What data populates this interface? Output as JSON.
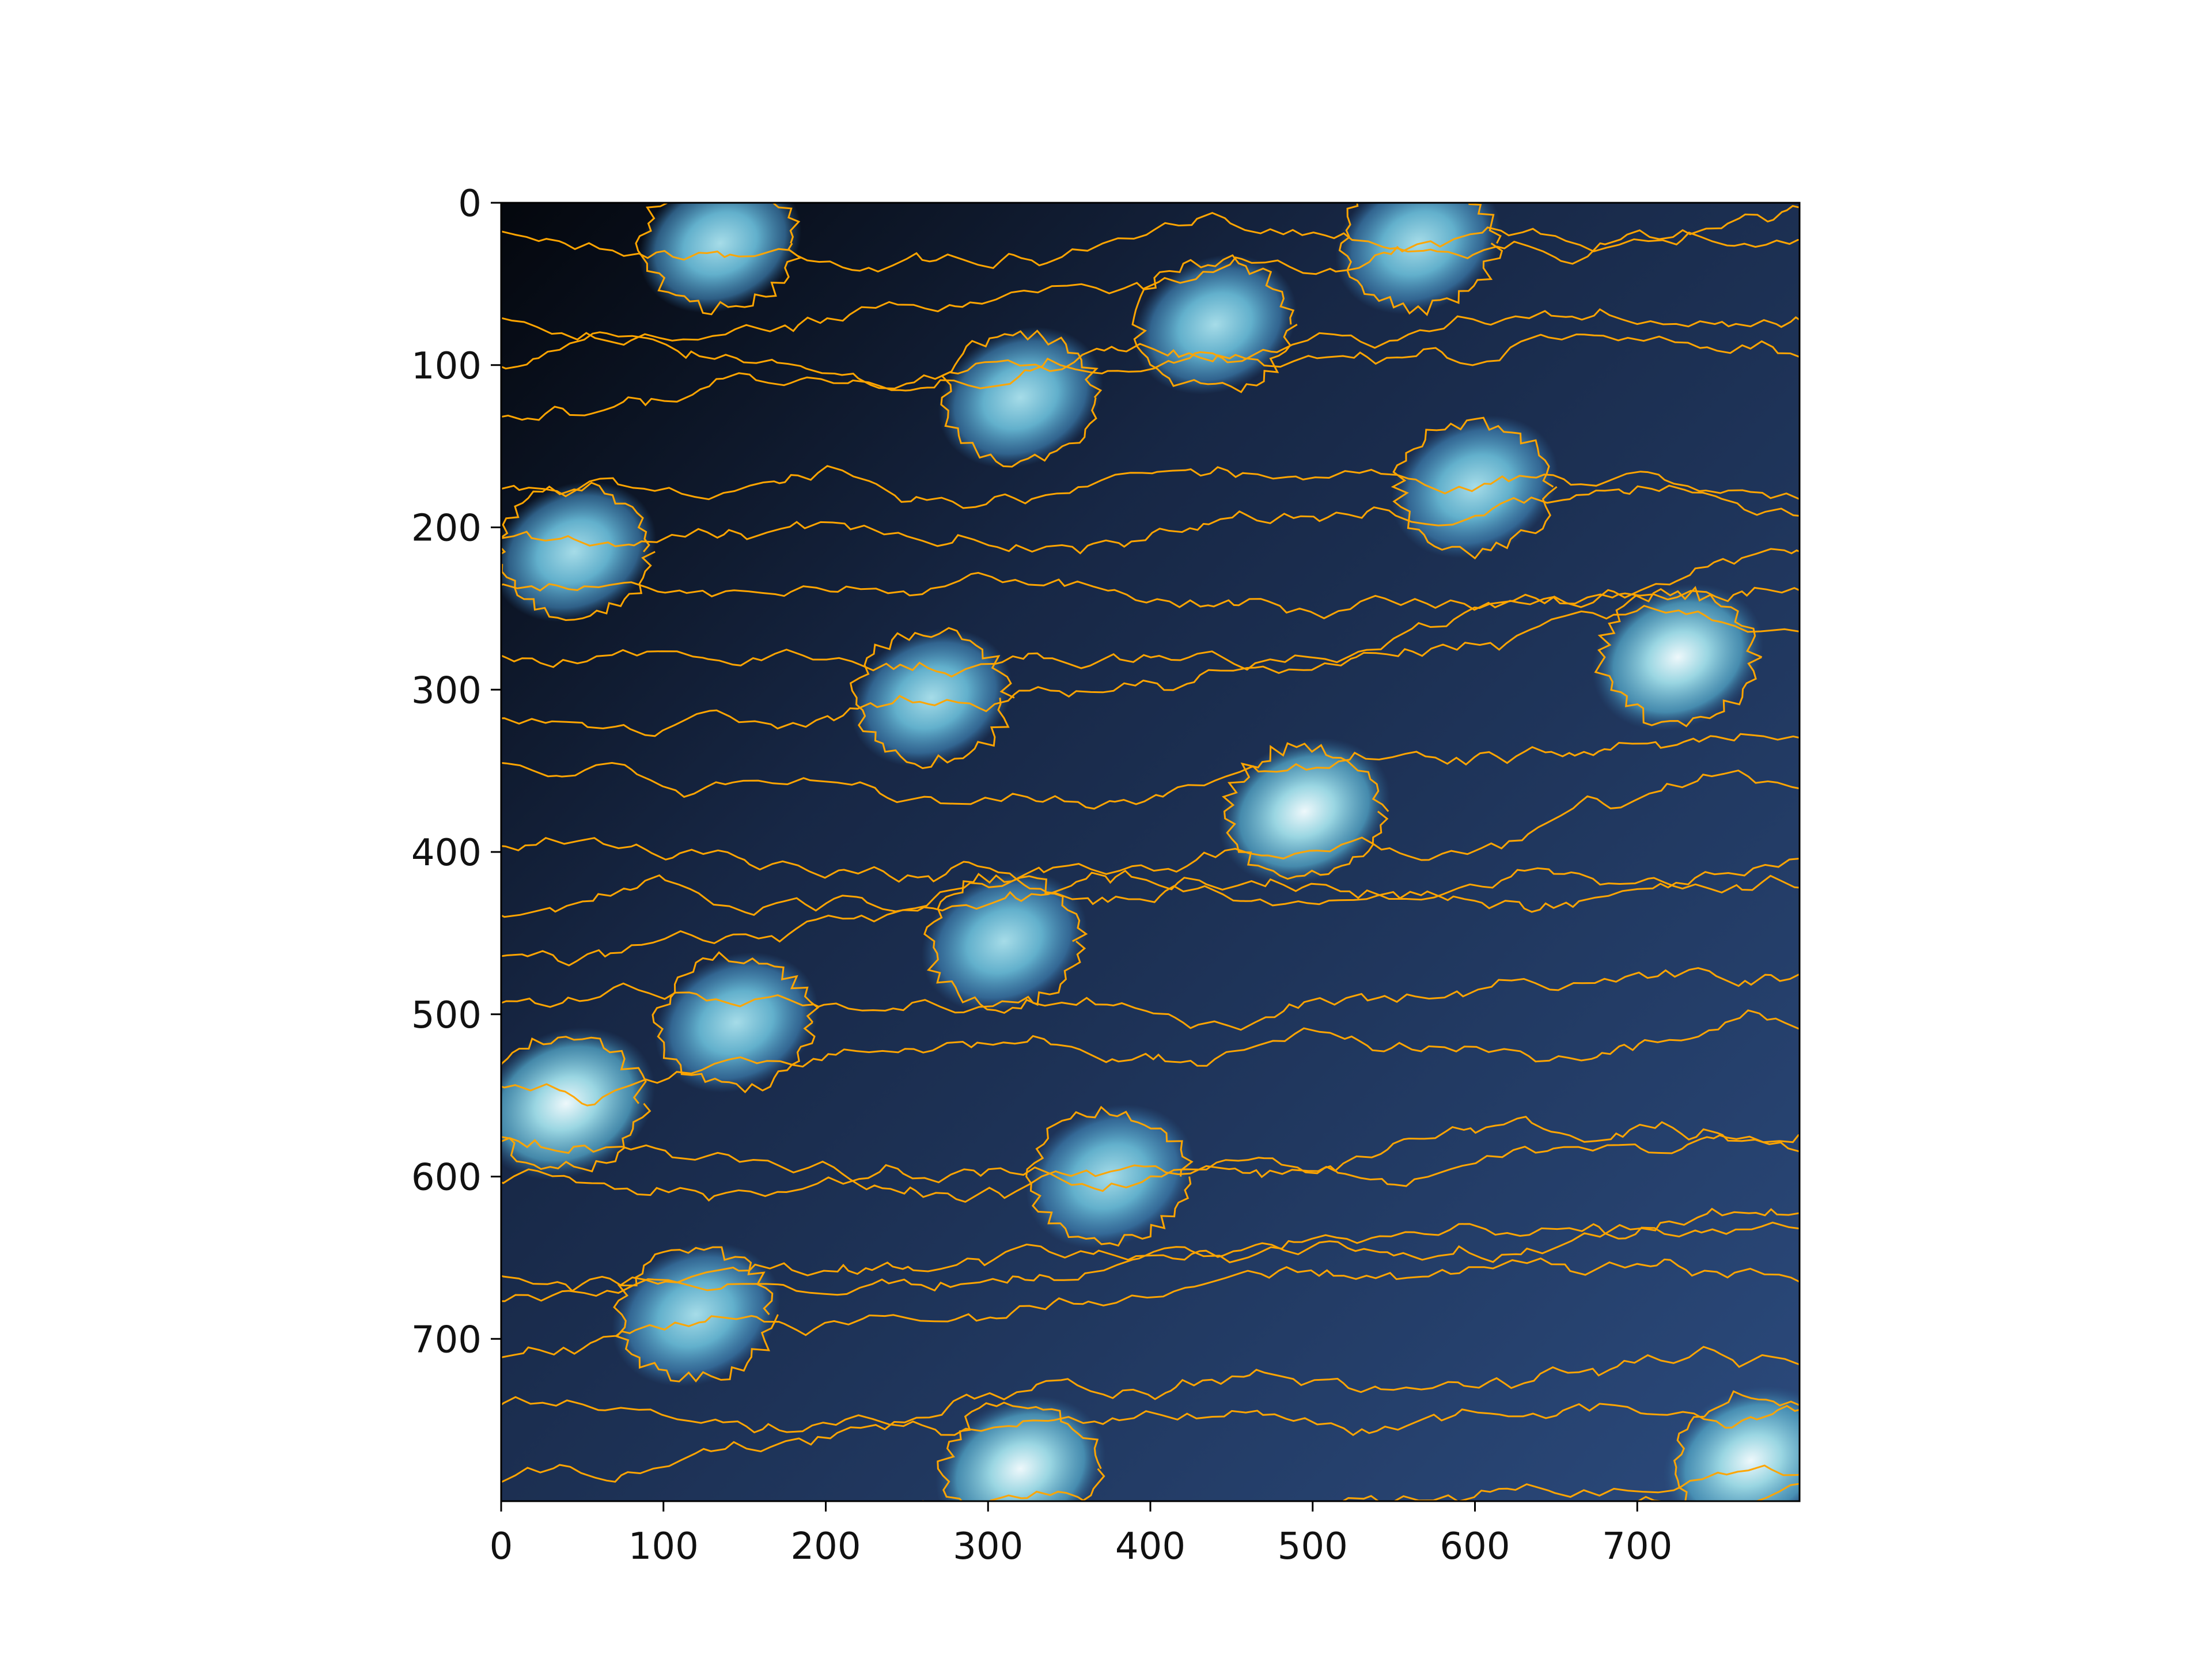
{
  "chart_data": {
    "type": "heatmap",
    "title": "",
    "xlabel": "",
    "ylabel": "",
    "xlim": [
      0,
      800
    ],
    "ylim": [
      800,
      0
    ],
    "y_axis_inverted": true,
    "xticks": [
      0,
      100,
      200,
      300,
      400,
      500,
      600,
      700
    ],
    "yticks": [
      0,
      100,
      200,
      300,
      400,
      500,
      600,
      700
    ],
    "xtick_labels": [
      "0",
      "100",
      "200",
      "300",
      "400",
      "500",
      "600",
      "700"
    ],
    "ytick_labels": [
      "0",
      "100",
      "200",
      "300",
      "400",
      "500",
      "600",
      "700"
    ],
    "colormap": "dark navy to cyan to white",
    "background_color": "#22395f",
    "contour_color": "#ffa500",
    "grid": false,
    "legend": "none",
    "blobs": [
      {
        "x": 135,
        "y": 25,
        "value": 0.65
      },
      {
        "x": 565,
        "y": 25,
        "value": 0.72
      },
      {
        "x": 440,
        "y": 75,
        "value": 0.66
      },
      {
        "x": 320,
        "y": 120,
        "value": 0.7
      },
      {
        "x": 600,
        "y": 175,
        "value": 0.74
      },
      {
        "x": 45,
        "y": 215,
        "value": 0.68
      },
      {
        "x": 725,
        "y": 280,
        "value": 0.85
      },
      {
        "x": 265,
        "y": 305,
        "value": 0.62
      },
      {
        "x": 495,
        "y": 375,
        "value": 0.86
      },
      {
        "x": 310,
        "y": 455,
        "value": 0.72
      },
      {
        "x": 145,
        "y": 505,
        "value": 0.68
      },
      {
        "x": 40,
        "y": 555,
        "value": 1.0
      },
      {
        "x": 375,
        "y": 600,
        "value": 0.78
      },
      {
        "x": 120,
        "y": 685,
        "value": 0.78
      },
      {
        "x": 320,
        "y": 780,
        "value": 0.82
      },
      {
        "x": 770,
        "y": 775,
        "value": 0.92
      }
    ]
  }
}
